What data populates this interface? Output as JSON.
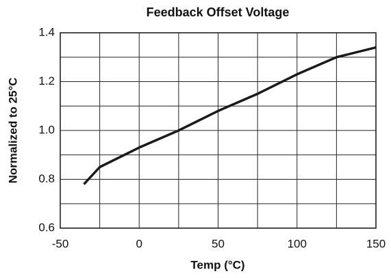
{
  "chart_data": {
    "type": "line",
    "title": "Feedback Offset Voltage",
    "xlabel": "Temp (°C)",
    "ylabel": "Normalized to 25°C",
    "x": [
      -35,
      -25,
      0,
      25,
      50,
      75,
      100,
      125,
      150
    ],
    "series": [
      {
        "name": "Feedback Offset Voltage",
        "color": "#1a1a1a",
        "values": [
          0.78,
          0.85,
          0.93,
          1.0,
          1.08,
          1.15,
          1.23,
          1.3,
          1.34
        ]
      }
    ],
    "xlim": [
      -50,
      150
    ],
    "xticks": [
      -50,
      0,
      50,
      100,
      150
    ],
    "ylim": [
      0.6,
      1.4
    ],
    "yticks": [
      0.6,
      0.8,
      {
        "value": 1,
        "label": "1.0"
      },
      1.2,
      1.4
    ],
    "xgrid": [
      -25,
      25,
      75,
      125
    ],
    "ygrid": [
      0.7,
      0.9,
      1.1,
      1.3
    ],
    "grid": true,
    "legend": false
  }
}
